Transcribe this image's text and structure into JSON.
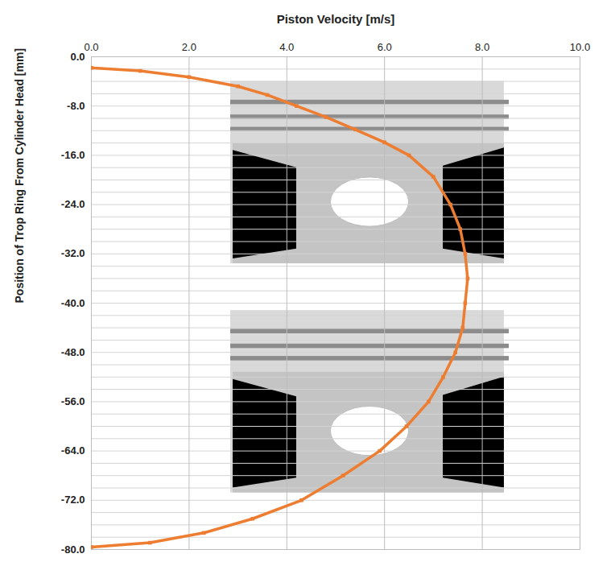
{
  "chart_data": {
    "type": "line",
    "x_label": "Piston Velocity [m/s]",
    "y_label": "Position of Trop Ring From Cylinder Head [mm]",
    "x": [
      0.0,
      1.0,
      2.0,
      3.0,
      3.6,
      4.2,
      4.8,
      5.4,
      6.0,
      6.5,
      7.0,
      7.35,
      7.55,
      7.65,
      7.7,
      7.65,
      7.6,
      7.45,
      7.2,
      6.9,
      6.45,
      5.9,
      5.15,
      4.3,
      3.3,
      2.3,
      1.2,
      0.0
    ],
    "values": [
      -1.8,
      -2.3,
      -3.3,
      -4.8,
      -6.2,
      -8.0,
      -9.8,
      -11.8,
      -13.9,
      -16.0,
      -19.5,
      -24.0,
      -28.0,
      -32.0,
      -36.0,
      -40.0,
      -44.0,
      -48.0,
      -52.0,
      -56.0,
      -60.0,
      -64.0,
      -68.0,
      -72.0,
      -75.0,
      -77.3,
      -78.9,
      -79.6
    ],
    "color": "#ed7d31",
    "marker": "square",
    "xlim": [
      0,
      10
    ],
    "xticks": [
      {
        "value": 0,
        "label": "0.0"
      },
      {
        "value": 2,
        "label": "2.0"
      },
      {
        "value": 4,
        "label": "4.0"
      },
      {
        "value": 6,
        "label": "6.0"
      },
      {
        "value": 8,
        "label": "8.0"
      },
      {
        "value": 10,
        "label": "10.0"
      }
    ],
    "ylim": [
      -80,
      0
    ],
    "yticks": [
      {
        "value": 0,
        "label": "0.0"
      },
      {
        "value": -8,
        "label": "-8.0"
      },
      {
        "value": -16,
        "label": "-16.0"
      },
      {
        "value": -24,
        "label": "-24.0"
      },
      {
        "value": -32,
        "label": "-32.0"
      },
      {
        "value": -40,
        "label": "-40.0"
      },
      {
        "value": -48,
        "label": "-48.0"
      },
      {
        "value": -56,
        "label": "-56.0"
      },
      {
        "value": -64,
        "label": "-64.0"
      },
      {
        "value": -72,
        "label": "-72.0"
      },
      {
        "value": -80,
        "label": "-80.0"
      }
    ],
    "grid": true
  }
}
